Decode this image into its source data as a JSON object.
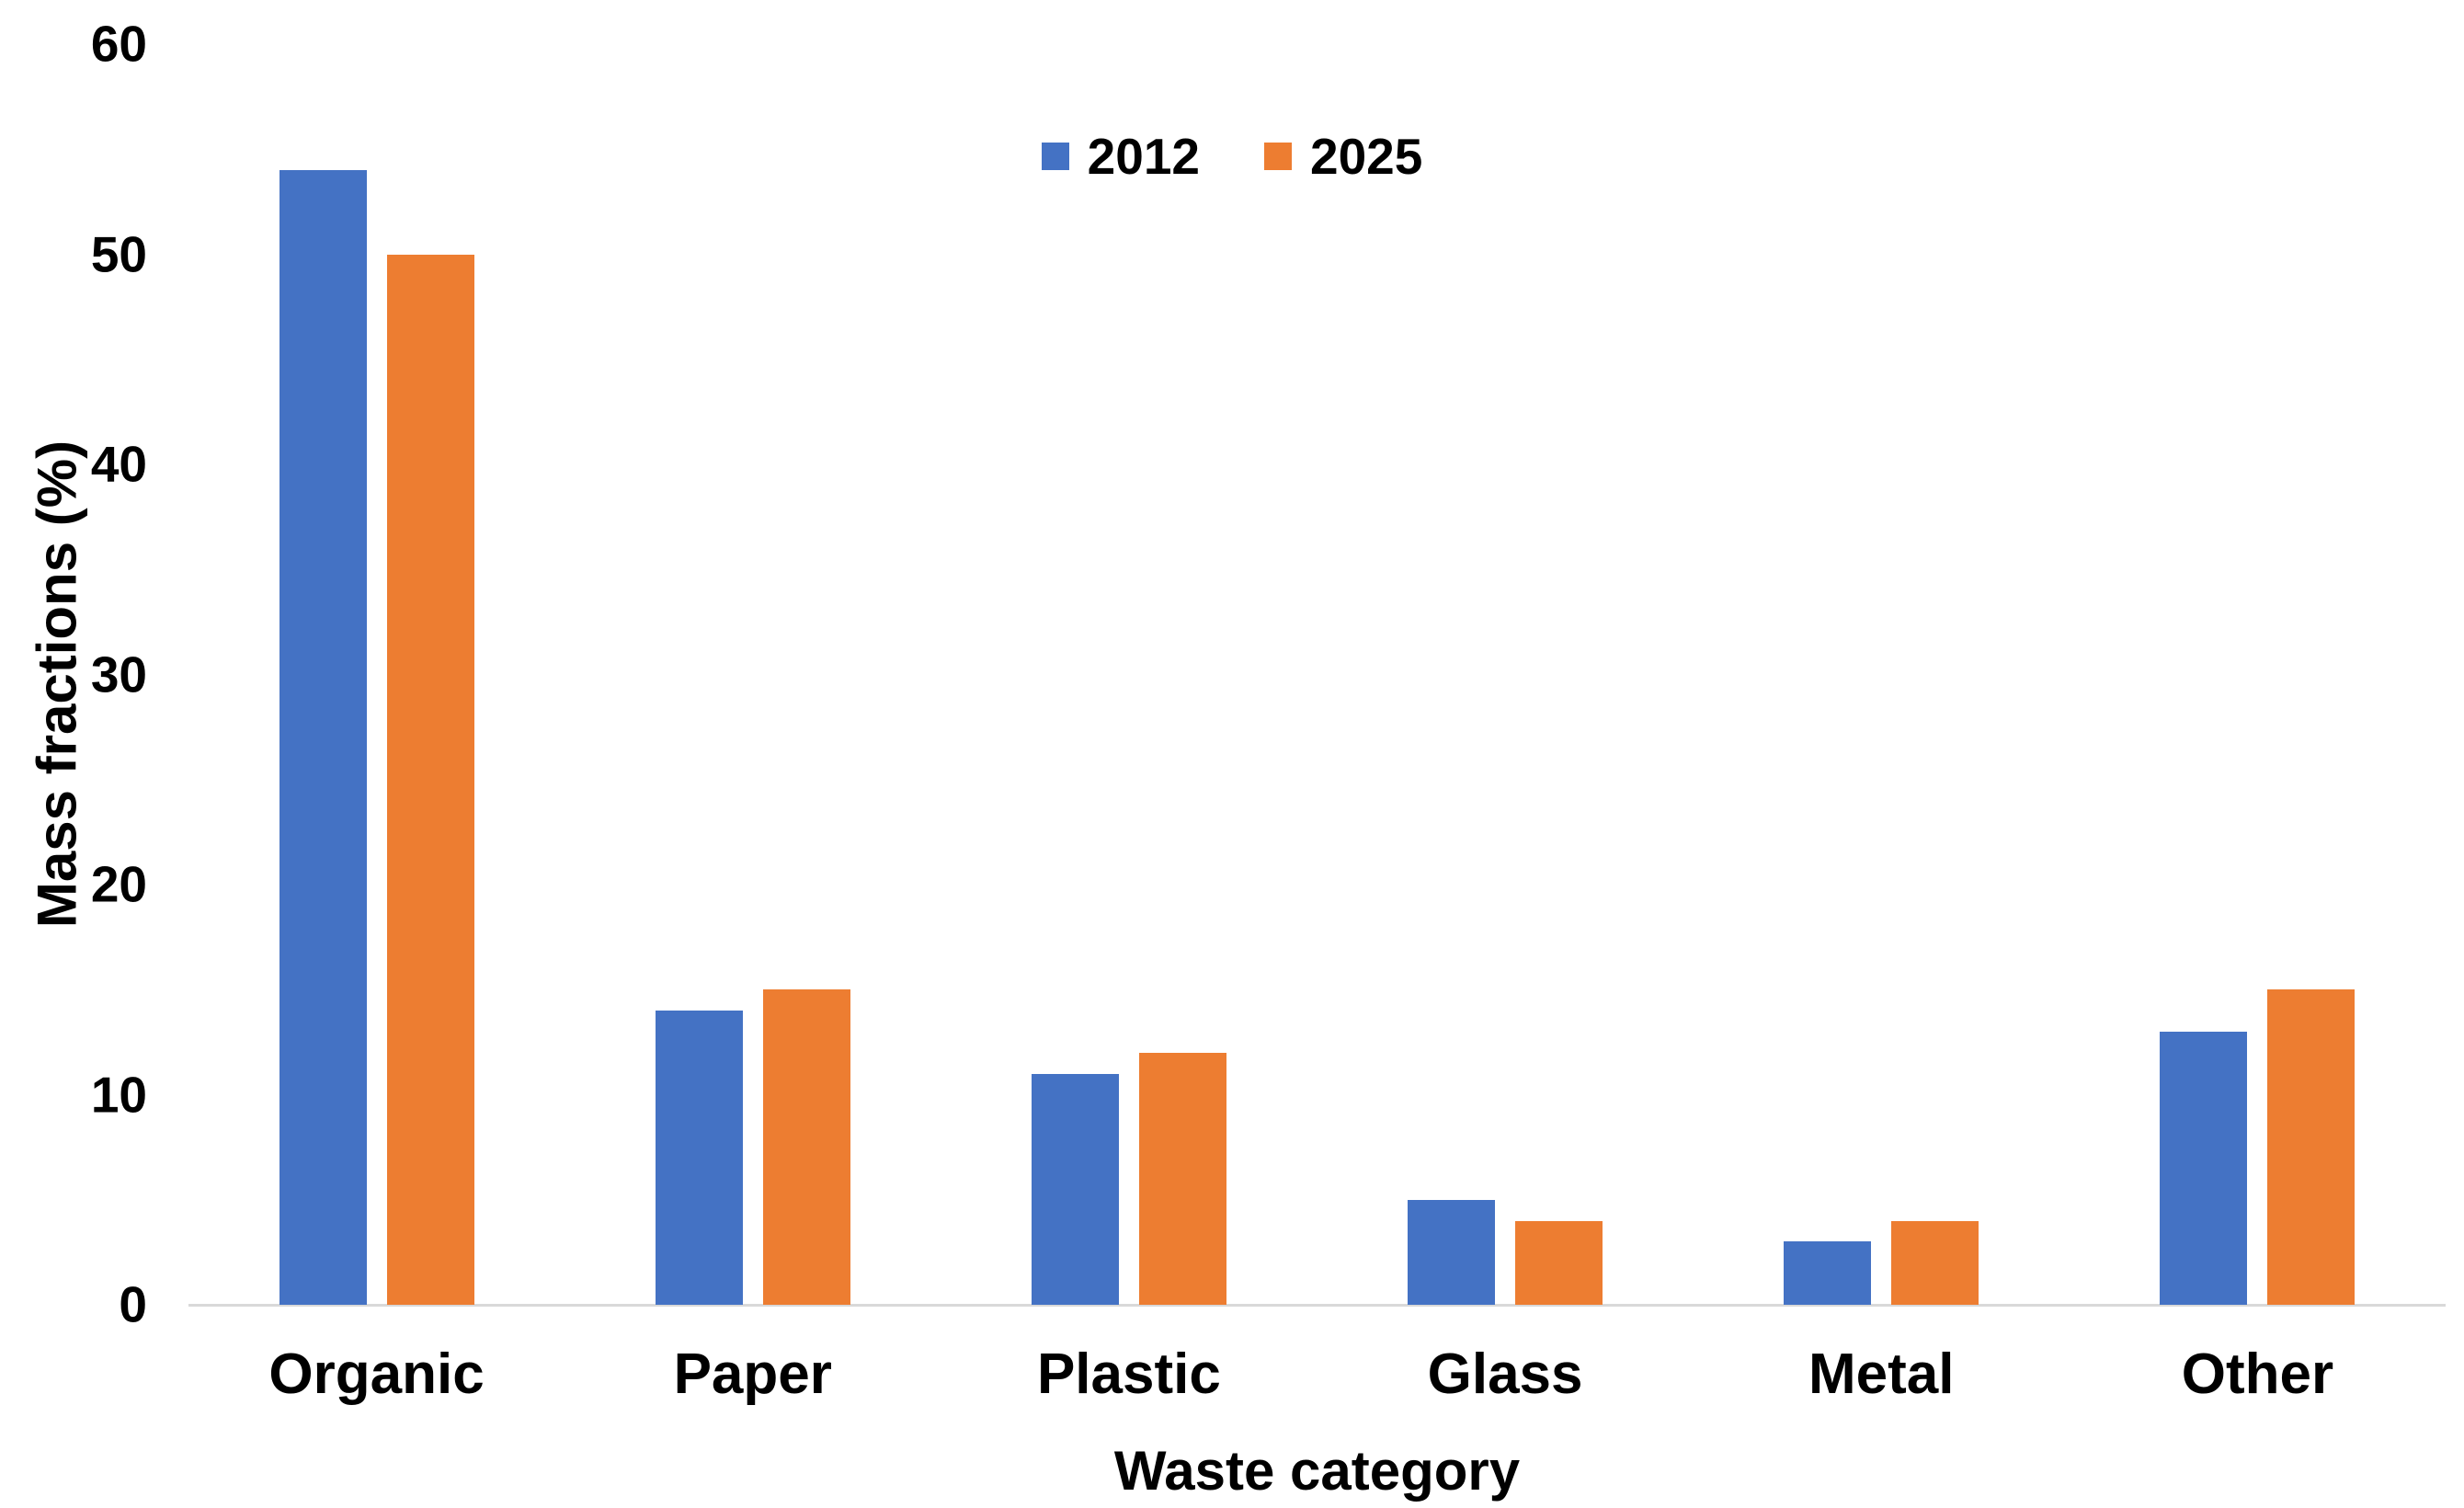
{
  "chart_data": {
    "type": "bar",
    "title": "",
    "categories": [
      "Organic",
      "Paper",
      "Plastic",
      "Glass",
      "Metal",
      "Other"
    ],
    "series": [
      {
        "name": "2012",
        "color": "#4472C4",
        "values": [
          54,
          14,
          11,
          5,
          3,
          13
        ]
      },
      {
        "name": "2025",
        "color": "#ED7D31",
        "values": [
          50,
          15,
          12,
          4,
          4,
          15
        ]
      }
    ],
    "xlabel": "Waste category",
    "ylabel": "Mass fractions (%)",
    "ylim": [
      0,
      60
    ],
    "y_ticks": [
      0,
      10,
      20,
      30,
      40,
      50,
      60
    ],
    "grid": false,
    "legend_position": "top-center",
    "background_color": "#FFFFFF",
    "axis_line_color": "#D9D9D9",
    "text_color": "#000000"
  }
}
